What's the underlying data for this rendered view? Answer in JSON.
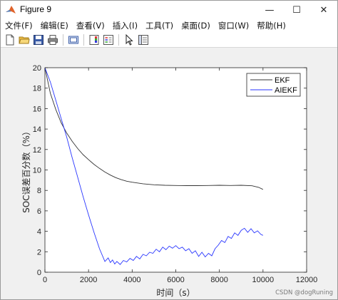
{
  "window": {
    "title": "Figure 9",
    "controls": {
      "minimize": "—",
      "maximize": "☐",
      "close": "✕"
    }
  },
  "menu": [
    {
      "label": "文件(F)"
    },
    {
      "label": "编辑(E)"
    },
    {
      "label": "查看(V)"
    },
    {
      "label": "插入(I)"
    },
    {
      "label": "工具(T)"
    },
    {
      "label": "桌面(D)"
    },
    {
      "label": "窗口(W)"
    },
    {
      "label": "帮助(H)"
    }
  ],
  "toolbar": [
    {
      "name": "new-figure",
      "icon": "new-file-icon"
    },
    {
      "name": "open-file",
      "icon": "open-folder-icon"
    },
    {
      "name": "save-figure",
      "icon": "save-icon"
    },
    {
      "name": "print-figure",
      "icon": "print-icon"
    },
    {
      "name": "link-plot",
      "icon": "link-plot-icon"
    },
    {
      "name": "insert-colorbar",
      "icon": "colorbar-icon"
    },
    {
      "name": "insert-legend",
      "icon": "legend-icon"
    },
    {
      "name": "edit-plot",
      "icon": "pointer-arrow-icon"
    },
    {
      "name": "property-inspector",
      "icon": "property-inspector-icon"
    }
  ],
  "watermark": "CSDN @dogRuning",
  "chart_data": {
    "type": "line",
    "xlabel": "时间（s）",
    "ylabel": "SOC误差百分数（%）",
    "xlim": [
      0,
      12000
    ],
    "ylim": [
      0,
      20
    ],
    "xticks": [
      0,
      2000,
      4000,
      6000,
      8000,
      10000,
      12000
    ],
    "yticks": [
      0,
      2,
      4,
      6,
      8,
      10,
      12,
      14,
      16,
      18,
      20
    ],
    "grid": false,
    "legend_position": "top-right",
    "series": [
      {
        "name": "EKF",
        "color": "#333333",
        "x": [
          0,
          250,
          500,
          750,
          1000,
          1250,
          1500,
          1750,
          2000,
          2250,
          2500,
          2750,
          3000,
          3250,
          3500,
          3750,
          4000,
          4500,
          5000,
          5500,
          6000,
          6500,
          7000,
          7500,
          8000,
          8500,
          9000,
          9500,
          9800,
          10000
        ],
        "y": [
          20,
          17.5,
          15.9,
          14.6,
          13.6,
          12.8,
          12.1,
          11.5,
          11.0,
          10.55,
          10.15,
          9.8,
          9.5,
          9.25,
          9.05,
          8.9,
          8.8,
          8.65,
          8.55,
          8.5,
          8.48,
          8.47,
          8.47,
          8.48,
          8.5,
          8.48,
          8.5,
          8.45,
          8.3,
          8.1
        ]
      },
      {
        "name": "AIEKF",
        "color": "#2936ff",
        "x": [
          0,
          250,
          500,
          750,
          1000,
          1250,
          1500,
          1750,
          2000,
          2250,
          2500,
          2750,
          2900,
          3000,
          3100,
          3200,
          3300,
          3450,
          3600,
          3750,
          3900,
          4050,
          4200,
          4350,
          4500,
          4650,
          4800,
          4950,
          5100,
          5250,
          5400,
          5550,
          5700,
          5850,
          6000,
          6150,
          6300,
          6450,
          6600,
          6750,
          6900,
          7050,
          7200,
          7350,
          7500,
          7650,
          7800,
          7950,
          8100,
          8250,
          8400,
          8550,
          8700,
          8850,
          9000,
          9150,
          9300,
          9450,
          9600,
          9750,
          9900,
          10000
        ],
        "y": [
          20,
          18.6,
          16.8,
          15.0,
          13.2,
          11.2,
          9.3,
          7.4,
          5.6,
          3.9,
          2.3,
          1.05,
          1.4,
          0.95,
          1.2,
          0.8,
          1.05,
          0.75,
          1.15,
          1.0,
          1.35,
          1.15,
          1.55,
          1.3,
          1.75,
          1.6,
          1.95,
          1.85,
          2.25,
          2.0,
          2.45,
          2.2,
          2.55,
          2.35,
          2.6,
          2.3,
          2.45,
          2.1,
          2.3,
          1.85,
          2.1,
          1.55,
          1.95,
          1.5,
          1.85,
          1.6,
          2.3,
          2.65,
          3.1,
          2.9,
          3.5,
          3.3,
          3.85,
          3.6,
          4.1,
          4.3,
          3.9,
          4.25,
          3.85,
          4.05,
          3.7,
          3.6
        ]
      }
    ]
  }
}
